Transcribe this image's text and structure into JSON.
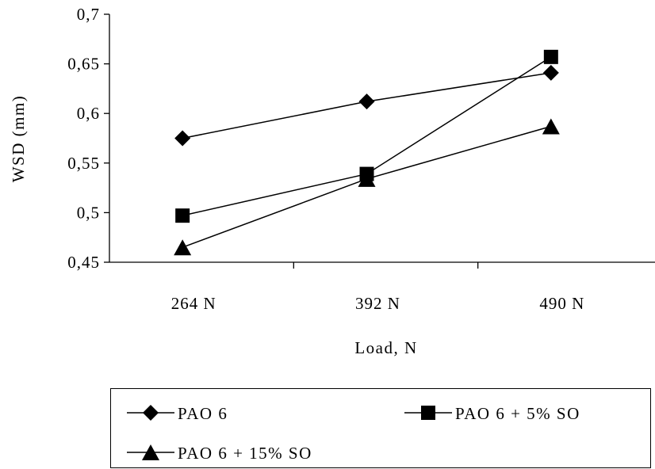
{
  "chart_data": {
    "type": "line",
    "categories": [
      "264 N",
      "392 N",
      "490 N"
    ],
    "series": [
      {
        "name": "PAO 6",
        "marker": "diamond",
        "values": [
          0.575,
          0.612,
          0.641
        ]
      },
      {
        "name": "PAO 6 + 5% SO",
        "marker": "square",
        "values": [
          0.497,
          0.539,
          0.657
        ]
      },
      {
        "name": "PAO 6 + 15% SO",
        "marker": "triangle",
        "values": [
          0.465,
          0.534,
          0.587
        ]
      }
    ],
    "xlabel": "Load, N",
    "ylabel": "WSD (mm)",
    "ylim": [
      0.45,
      0.7
    ],
    "yticks": [
      0.45,
      0.5,
      0.55,
      0.6,
      0.65,
      0.7
    ],
    "ytick_labels": [
      "0,45",
      "0,5",
      "0,55",
      "0,6",
      "0,65",
      "0,7"
    ],
    "grid": false,
    "legend": "bottom",
    "color": "#000000"
  }
}
